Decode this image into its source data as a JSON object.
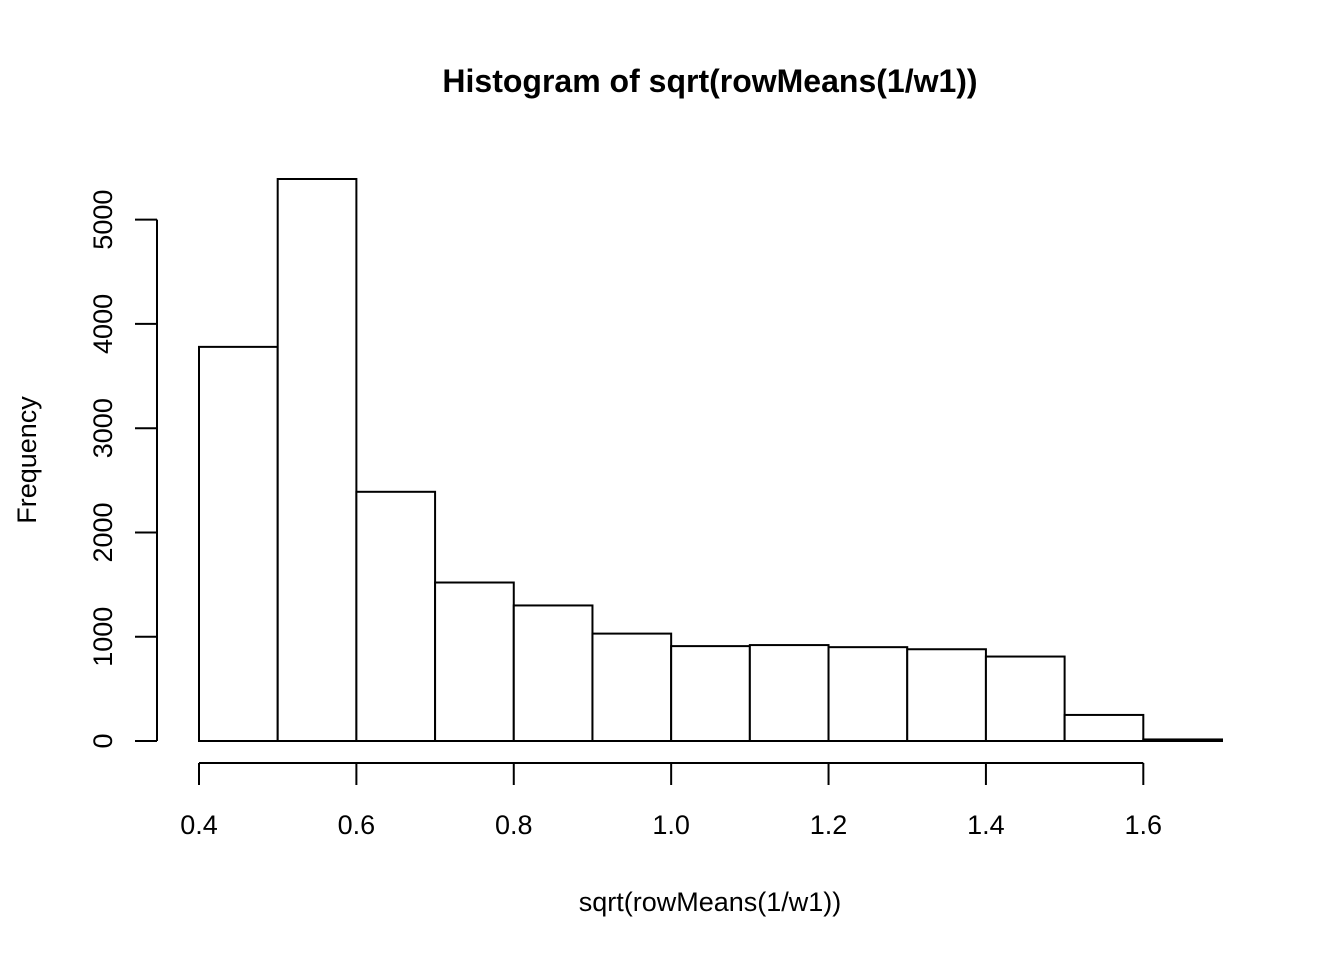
{
  "chart_data": {
    "type": "bar",
    "title": "Histogram of sqrt(rowMeans(1/w1))",
    "xlabel": "sqrt(rowMeans(1/w1))",
    "ylabel": "Frequency",
    "bin_edges": [
      0.4,
      0.5,
      0.6,
      0.7,
      0.8,
      0.9,
      1.0,
      1.1,
      1.2,
      1.3,
      1.4,
      1.5,
      1.6,
      1.7
    ],
    "values": [
      3780,
      5390,
      2390,
      1520,
      1300,
      1030,
      910,
      920,
      900,
      880,
      810,
      250,
      15
    ],
    "xlim": [
      0.4,
      1.7
    ],
    "ylim": [
      0,
      5390
    ],
    "x_ticks": [
      0.4,
      0.6,
      0.8,
      1.0,
      1.2,
      1.4,
      1.6
    ],
    "x_tick_labels": [
      "0.4",
      "0.6",
      "0.8",
      "1.0",
      "1.2",
      "1.4",
      "1.6"
    ],
    "y_ticks": [
      0,
      1000,
      2000,
      3000,
      4000,
      5000
    ],
    "y_tick_labels": [
      "0",
      "1000",
      "2000",
      "3000",
      "4000",
      "5000"
    ],
    "grid": false,
    "legend": "none",
    "bar_fill": "#ffffff",
    "bar_stroke": "#000000"
  }
}
